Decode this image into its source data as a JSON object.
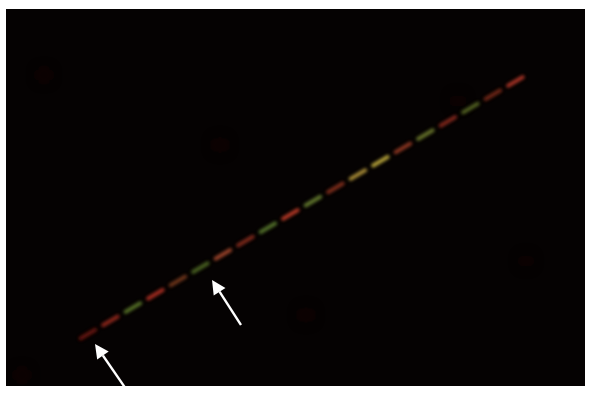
{
  "image": {
    "description_free": true,
    "background_color": "#050202",
    "frame_color": "#ffffff",
    "fiber": {
      "segments": [
        {
          "color": "#6e1410"
        },
        {
          "color": "#9a2a1c"
        },
        {
          "color": "#5e7a2a"
        },
        {
          "color": "#b53022"
        },
        {
          "color": "#7a3a1c"
        },
        {
          "color": "#4f6a22"
        },
        {
          "color": "#a84a2c"
        },
        {
          "color": "#8c2c1e"
        },
        {
          "color": "#5a7a2e"
        },
        {
          "color": "#c8402a"
        },
        {
          "color": "#6a8232"
        },
        {
          "color": "#8a3220"
        },
        {
          "color": "#b89a3a"
        },
        {
          "color": "#c4b040"
        },
        {
          "color": "#9a3a24"
        },
        {
          "color": "#6e7c2c"
        },
        {
          "color": "#8c2a1c"
        },
        {
          "color": "#5a6a24"
        },
        {
          "color": "#7a2a1a"
        },
        {
          "color": "#b83828"
        }
      ]
    },
    "arrows": [
      {
        "icon": "arrow-up-left-icon",
        "color": "#ffffff"
      },
      {
        "icon": "arrow-up-left-icon",
        "color": "#ffffff"
      }
    ]
  }
}
